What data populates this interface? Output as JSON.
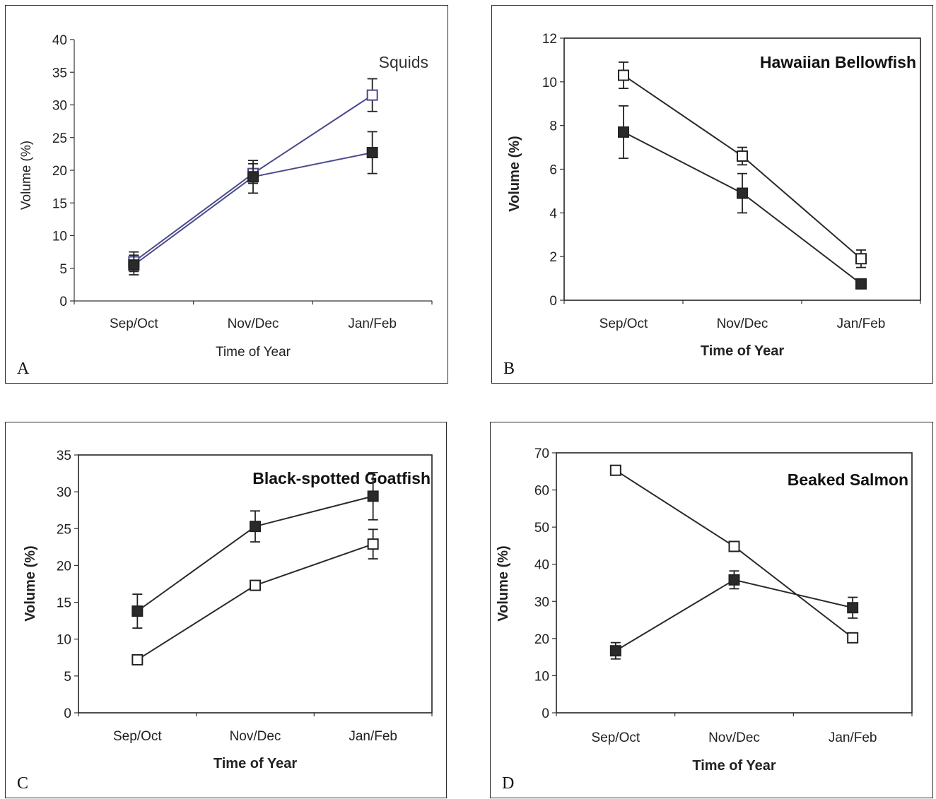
{
  "chart_data": [
    {
      "panel": "A",
      "type": "line",
      "title": "Squids",
      "xlabel": "Time of Year",
      "ylabel": "Volume (%)",
      "categories": [
        "Sep/Oct",
        "Nov/Dec",
        "Jan/Feb"
      ],
      "ylim": [
        0,
        40
      ],
      "yticks": [
        "0",
        "5",
        "10",
        "15",
        "20",
        "25",
        "30",
        "35",
        "40"
      ],
      "series": [
        {
          "marker": "open-square",
          "values": [
            6.0,
            19.5,
            31.5
          ],
          "err": [
            1.5,
            1.5,
            2.5
          ]
        },
        {
          "marker": "filled-square",
          "values": [
            5.5,
            19.0,
            22.7
          ],
          "err": [
            1.5,
            2.5,
            3.2
          ]
        }
      ]
    },
    {
      "panel": "B",
      "type": "line",
      "title": "Hawaiian Bellowfish",
      "xlabel": "Time of Year",
      "ylabel": "Volume (%)",
      "categories": [
        "Sep/Oct",
        "Nov/Dec",
        "Jan/Feb"
      ],
      "ylim": [
        0,
        12
      ],
      "yticks": [
        "0",
        "2",
        "4",
        "6",
        "8",
        "10",
        "12"
      ],
      "series": [
        {
          "marker": "open-square",
          "values": [
            10.3,
            6.6,
            1.9
          ],
          "err": [
            0.6,
            0.4,
            0.4
          ]
        },
        {
          "marker": "filled-square",
          "values": [
            7.7,
            4.9,
            0.75
          ],
          "err": [
            1.2,
            0.9,
            0.1
          ]
        }
      ]
    },
    {
      "panel": "C",
      "type": "line",
      "title": "Black-spotted Goatfish",
      "xlabel": "Time of Year",
      "ylabel": "Volume (%)",
      "categories": [
        "Sep/Oct",
        "Nov/Dec",
        "Jan/Feb"
      ],
      "ylim": [
        0,
        35
      ],
      "yticks": [
        "0",
        "5",
        "10",
        "15",
        "20",
        "25",
        "30",
        "35"
      ],
      "series": [
        {
          "marker": "open-square",
          "values": [
            7.2,
            17.3,
            22.9
          ],
          "err": [
            0.3,
            0.4,
            2.0
          ]
        },
        {
          "marker": "filled-square",
          "values": [
            13.8,
            25.3,
            29.4
          ],
          "err": [
            2.3,
            2.1,
            3.2
          ]
        }
      ]
    },
    {
      "panel": "D",
      "type": "line",
      "title": "Beaked Salmon",
      "xlabel": "Time of Year",
      "ylabel": "Volume (%)",
      "categories": [
        "Sep/Oct",
        "Nov/Dec",
        "Jan/Feb"
      ],
      "ylim": [
        0,
        70
      ],
      "yticks": [
        "0",
        "10",
        "20",
        "30",
        "40",
        "50",
        "60",
        "70"
      ],
      "series": [
        {
          "marker": "open-square",
          "values": [
            65.3,
            44.8,
            20.2
          ],
          "err": [
            0.5,
            0.5,
            0.8
          ]
        },
        {
          "marker": "filled-square",
          "values": [
            16.7,
            35.8,
            28.3
          ],
          "err": [
            2.2,
            2.4,
            2.8
          ]
        }
      ]
    }
  ]
}
